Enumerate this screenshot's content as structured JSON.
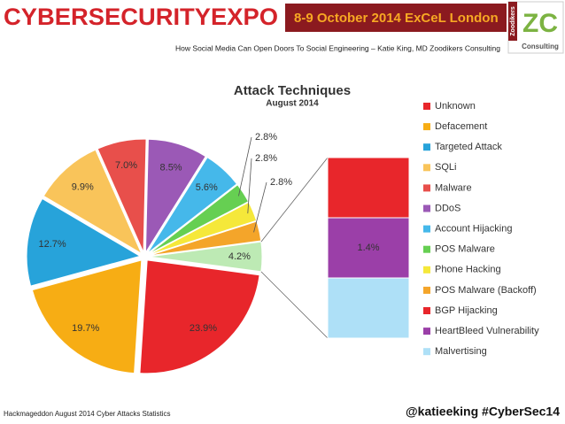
{
  "header": {
    "brand": "CYBERSECURITYEXPO",
    "event": "8-9 October 2014 ExCeL London",
    "talk_title": "How Social Media Can Open Doors To Social Engineering – Katie King, MD Zoodikers Consulting"
  },
  "logo": {
    "initials": "ZC",
    "name": "Zoodikers",
    "tagline": "Consulting"
  },
  "chart_data": {
    "type": "bar-of-pie",
    "title": "Attack Techniques",
    "subtitle": "August 2014",
    "categories": [
      "Unknown",
      "Defacement",
      "Targeted Attack",
      "SQLi",
      "Malware",
      "DDoS",
      "Account Hijacking",
      "POS Malware",
      "Phone Hacking",
      "POS Malware (Backoff)"
    ],
    "colors": [
      "#e8262b",
      "#f7ad14",
      "#27a3da",
      "#f9c45a",
      "#e84f4b",
      "#9b59b6",
      "#45b8ea",
      "#66cf52",
      "#f5e83a",
      "#f4a52a"
    ],
    "values": [
      23.9,
      19.7,
      12.7,
      9.9,
      7.0,
      8.5,
      5.6,
      2.8,
      2.8,
      2.8
    ],
    "value_labels": [
      "23.9%",
      "19.7%",
      "12.7%",
      "9.9%",
      "7.0%",
      "8.5%",
      "5.6%",
      "2.8%",
      "2.8%",
      "2.8%"
    ],
    "other": {
      "value": 4.2,
      "label": "4.2%",
      "color": "#bdeab4"
    },
    "breakdown": {
      "categories": [
        "BGP Hijacking",
        "HeartBleed Vulnerability",
        "Malvertising"
      ],
      "colors": [
        "#e8262b",
        "#9b3fa8",
        "#aee0f7"
      ],
      "values": [
        1.4,
        1.4,
        1.4
      ],
      "value_labels": [
        null,
        "1.4%",
        null
      ]
    },
    "legend": "right"
  },
  "footer": {
    "source": "Hackmageddon August 2014 Cyber Attacks Statistics",
    "handle": "@katieeking #CyberSec14"
  }
}
